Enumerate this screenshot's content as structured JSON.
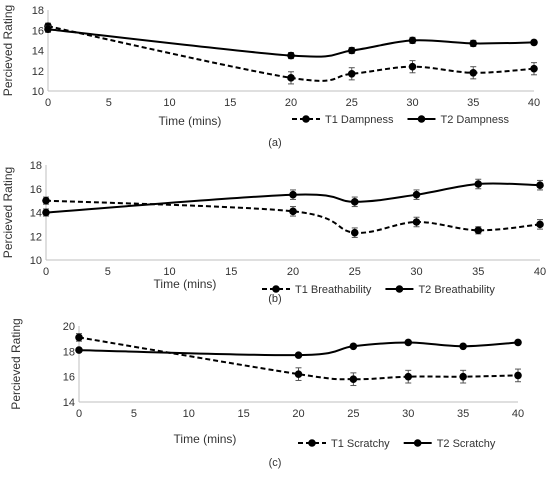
{
  "chart_data": [
    {
      "type": "line",
      "panel_label": "(a)",
      "ylabel": "Percieved Rating",
      "xlabel": "Time (mins)",
      "x": [
        0,
        20,
        25,
        30,
        35,
        40
      ],
      "xlim": [
        0,
        40
      ],
      "xticks": [
        0,
        5,
        10,
        15,
        20,
        25,
        30,
        35,
        40
      ],
      "ylim": [
        10,
        18
      ],
      "yticks": [
        10,
        12,
        14,
        16,
        18
      ],
      "grid": false,
      "legend_position": "bottom-right",
      "series": [
        {
          "name": "T1 Dampness",
          "style": "dashed",
          "values": [
            16.4,
            11.3,
            11.7,
            12.4,
            11.8,
            12.2
          ],
          "errors": [
            0.3,
            0.6,
            0.6,
            0.6,
            0.6,
            0.6
          ]
        },
        {
          "name": "T2 Dampness",
          "style": "solid",
          "values": [
            16.1,
            13.5,
            14.0,
            15.0,
            14.7,
            14.8
          ],
          "errors": [
            0.3,
            0.3,
            0.3,
            0.3,
            0.3,
            0.2
          ]
        }
      ]
    },
    {
      "type": "line",
      "panel_label": "(b)",
      "ylabel": "Percieved Rating",
      "xlabel": "Time (mins)",
      "x": [
        0,
        20,
        25,
        30,
        35,
        40
      ],
      "xlim": [
        0,
        40
      ],
      "xticks": [
        0,
        5,
        10,
        15,
        20,
        25,
        30,
        35,
        40
      ],
      "ylim": [
        10,
        18
      ],
      "yticks": [
        10,
        12,
        14,
        16,
        18
      ],
      "grid": false,
      "legend_position": "bottom-right",
      "series": [
        {
          "name": "T1 Breathability",
          "style": "dashed",
          "values": [
            15.0,
            14.1,
            12.3,
            13.2,
            12.5,
            13.0
          ],
          "errors": [
            0.3,
            0.4,
            0.4,
            0.4,
            0.3,
            0.4
          ]
        },
        {
          "name": "T2 Breathability",
          "style": "solid",
          "values": [
            14.0,
            15.5,
            14.9,
            15.5,
            16.4,
            16.3
          ],
          "errors": [
            0.3,
            0.4,
            0.4,
            0.4,
            0.4,
            0.4
          ]
        }
      ]
    },
    {
      "type": "line",
      "panel_label": "(c)",
      "ylabel": "Percieved  Rating",
      "xlabel": "Time (mins)",
      "x": [
        0,
        20,
        25,
        30,
        35,
        40
      ],
      "xlim": [
        0,
        40
      ],
      "xticks": [
        0,
        5,
        10,
        15,
        20,
        25,
        30,
        35,
        40
      ],
      "ylim": [
        14,
        20
      ],
      "yticks": [
        14,
        16,
        18,
        20
      ],
      "grid": false,
      "legend_position": "bottom-right",
      "series": [
        {
          "name": "T1 Scratchy",
          "style": "dashed",
          "values": [
            19.1,
            16.2,
            15.8,
            16.0,
            16.0,
            16.1
          ],
          "errors": [
            0.3,
            0.5,
            0.5,
            0.5,
            0.5,
            0.5
          ]
        },
        {
          "name": "T2 Scratchy",
          "style": "solid",
          "values": [
            18.1,
            17.7,
            18.4,
            18.7,
            18.4,
            18.7
          ],
          "errors": [
            0.1,
            0.1,
            0.1,
            0.1,
            0.1,
            0.1
          ]
        }
      ]
    }
  ]
}
